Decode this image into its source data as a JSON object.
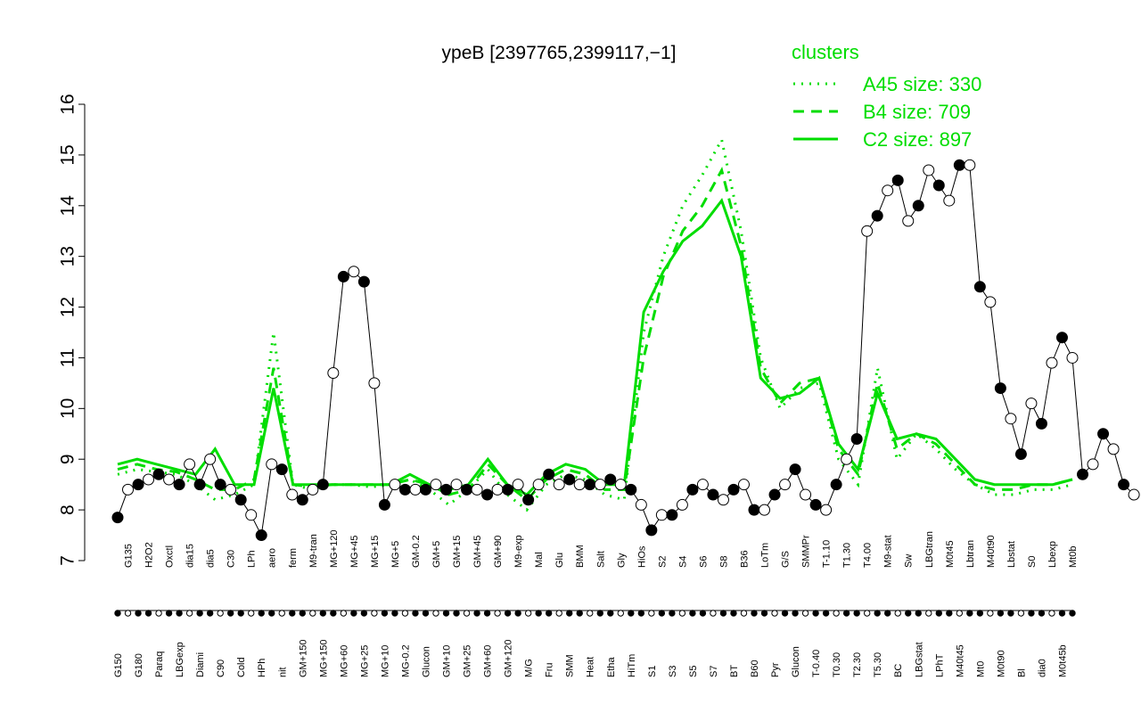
{
  "chart_data": {
    "type": "line",
    "title": "ypeB [2397765,2399117,−1]",
    "xlabel": "",
    "ylabel": "",
    "ylim": [
      7,
      16
    ],
    "yticks": [
      "7",
      "8",
      "9",
      "10",
      "11",
      "12",
      "13",
      "14",
      "15",
      "16"
    ],
    "grid": false,
    "legend": {
      "title": "clusters",
      "position": "top-right",
      "entries": [
        {
          "label": "A45 size: 330",
          "style": "dotted",
          "color": "#00dd00"
        },
        {
          "label": "B4 size: 709",
          "style": "dashed",
          "color": "#00dd00"
        },
        {
          "label": "C2 size: 897",
          "style": "solid",
          "color": "#00dd00"
        }
      ]
    },
    "x_tick_labels": [
      "G150",
      "G135",
      "G180",
      "H2O2",
      "Paraq",
      "Oxctl",
      "LBGexp",
      "dia15",
      "Diami",
      "dia5",
      "C90",
      "C30",
      "Cold",
      "LPh",
      "HPh",
      "aero",
      "nit",
      "ferm",
      "GM+150",
      "M9-tran",
      "MG+150",
      "MG+120",
      "MG+60",
      "MG+45",
      "MG+25",
      "MG+15",
      "MG+10",
      "MG+5",
      "MG-0.2",
      "GM-0.2",
      "Glucon",
      "GM+5",
      "GM+10",
      "GM+15",
      "GM+25",
      "GM+45",
      "GM+60",
      "GM+90",
      "GM+120",
      "M9-exp",
      "M/G",
      "Mal",
      "Fru",
      "Glu",
      "SMM",
      "BMM",
      "Heat",
      "Salt",
      "Etha",
      "Gly",
      "HiTm",
      "HiOs",
      "S1",
      "S2",
      "S3",
      "S4",
      "S5",
      "S6",
      "S7",
      "S8",
      "BT",
      "B36",
      "B60",
      "LoTm",
      "Pyr",
      "G/S",
      "Glucon",
      "SMMPr",
      "T-0.40",
      "T-1.10",
      "T0.30",
      "T1.30",
      "T2.30",
      "T4.00",
      "T5.30",
      "M9-stat",
      "BC",
      "Sw",
      "LBGstat",
      "LBGtran",
      "LPhT",
      "M0t45",
      "M40t45",
      "Lbtran",
      "Mt0",
      "M40t90",
      "M0t90",
      "Lbstat",
      "Bl",
      "S0",
      "dia0",
      "Lbexp",
      "M0t45b",
      "Mt0b"
    ],
    "series": [
      {
        "name": "A45 size: 330",
        "style": "dotted",
        "color": "#00dd00",
        "x": [
          1,
          3,
          5,
          7,
          9,
          11,
          13,
          15,
          17,
          19,
          21,
          23,
          25,
          27,
          29,
          31,
          33,
          35,
          37,
          39,
          41,
          43,
          45,
          47,
          49,
          51,
          53,
          55,
          57,
          59,
          61,
          63,
          65,
          67,
          69,
          71,
          73,
          75,
          77,
          79,
          81,
          83,
          85,
          87,
          89,
          91,
          93,
          95,
          97,
          99
        ],
        "y": [
          8.7,
          8.8,
          8.75,
          8.7,
          8.5,
          8.2,
          8.3,
          8.5,
          11.5,
          8.5,
          8.4,
          8.5,
          8.5,
          8.45,
          8.5,
          8.6,
          8.4,
          8.1,
          8.4,
          8.8,
          8.3,
          8.0,
          8.5,
          8.7,
          8.6,
          8.3,
          8.2,
          11.5,
          13.0,
          14.0,
          14.6,
          15.3,
          13.5,
          11.0,
          10.0,
          10.4,
          10.5,
          9.0,
          8.5,
          10.8,
          9.0,
          9.5,
          9.2,
          8.8,
          8.5,
          8.3,
          8.3,
          8.4,
          8.4,
          8.5
        ]
      },
      {
        "name": "B4 size: 709",
        "style": "dashed",
        "color": "#00dd00",
        "x": [
          1,
          3,
          5,
          7,
          9,
          11,
          13,
          15,
          17,
          19,
          21,
          23,
          25,
          27,
          29,
          31,
          33,
          35,
          37,
          39,
          41,
          43,
          45,
          47,
          49,
          51,
          53,
          55,
          57,
          59,
          61,
          63,
          65,
          67,
          69,
          71,
          73,
          75,
          77,
          79,
          81,
          83,
          85,
          87,
          89,
          91,
          93,
          95,
          97,
          99
        ],
        "y": [
          8.8,
          8.9,
          8.8,
          8.75,
          8.6,
          8.4,
          8.4,
          8.6,
          10.8,
          8.5,
          8.45,
          8.5,
          8.5,
          8.5,
          8.5,
          8.6,
          8.5,
          8.3,
          8.4,
          8.9,
          8.5,
          8.2,
          8.6,
          8.8,
          8.7,
          8.4,
          8.4,
          11.0,
          12.6,
          13.5,
          14.0,
          14.7,
          13.2,
          10.8,
          10.1,
          10.5,
          10.6,
          9.2,
          8.7,
          10.5,
          9.2,
          9.5,
          9.3,
          8.9,
          8.5,
          8.4,
          8.4,
          8.5,
          8.5,
          8.6
        ]
      },
      {
        "name": "C2 size: 897",
        "style": "solid",
        "color": "#00dd00",
        "x": [
          1,
          3,
          5,
          7,
          9,
          11,
          13,
          15,
          17,
          19,
          21,
          23,
          25,
          27,
          29,
          31,
          33,
          35,
          37,
          39,
          41,
          43,
          45,
          47,
          49,
          51,
          53,
          55,
          57,
          59,
          61,
          63,
          65,
          67,
          69,
          71,
          73,
          75,
          77,
          79,
          81,
          83,
          85,
          87,
          89,
          91,
          93,
          95,
          97,
          99
        ],
        "y": [
          8.9,
          9.0,
          8.9,
          8.8,
          8.7,
          9.2,
          8.5,
          8.5,
          10.4,
          8.5,
          8.5,
          8.5,
          8.5,
          8.5,
          8.5,
          8.7,
          8.5,
          8.4,
          8.5,
          9.0,
          8.5,
          8.3,
          8.7,
          8.9,
          8.8,
          8.5,
          8.5,
          11.9,
          12.7,
          13.3,
          13.6,
          14.1,
          13.0,
          10.6,
          10.2,
          10.3,
          10.6,
          9.3,
          8.8,
          10.3,
          9.4,
          9.5,
          9.4,
          9.0,
          8.6,
          8.5,
          8.5,
          8.5,
          8.5,
          8.6
        ]
      },
      {
        "name": "",
        "style": "points",
        "color": "#000000",
        "x": [
          1,
          2,
          3,
          4,
          5,
          6,
          7,
          8,
          9,
          10,
          11,
          12,
          13,
          14,
          15,
          16,
          17,
          18,
          19,
          20,
          21,
          22,
          23,
          24,
          25,
          26,
          27,
          28,
          29,
          30,
          31,
          32,
          33,
          34,
          35,
          36,
          37,
          38,
          39,
          40,
          41,
          42,
          43,
          44,
          45,
          46,
          47,
          48,
          49,
          50,
          51,
          52,
          53,
          54,
          55,
          56,
          57,
          58,
          59,
          60,
          61,
          62,
          63,
          64,
          65,
          66,
          67,
          68,
          69,
          70,
          71,
          72,
          73,
          74,
          75,
          76,
          77,
          78,
          79,
          80,
          81,
          82,
          83,
          84,
          85,
          86,
          87,
          88,
          89,
          90,
          91,
          92,
          93,
          94,
          95,
          96,
          97,
          98,
          99,
          100
        ],
        "y": [
          7.85,
          8.4,
          8.5,
          8.6,
          8.7,
          8.6,
          8.5,
          8.9,
          8.5,
          9.0,
          8.5,
          8.4,
          8.2,
          7.9,
          7.5,
          8.9,
          8.8,
          8.3,
          8.2,
          8.4,
          8.5,
          10.7,
          12.6,
          12.7,
          12.5,
          10.5,
          8.1,
          8.5,
          8.4,
          8.4,
          8.4,
          8.5,
          8.4,
          8.5,
          8.4,
          8.4,
          8.3,
          8.4,
          8.4,
          8.5,
          8.2,
          8.5,
          8.7,
          8.5,
          8.6,
          8.5,
          8.5,
          8.5,
          8.6,
          8.5,
          8.4,
          8.1,
          7.6,
          7.9,
          7.9,
          8.1,
          8.4,
          8.5,
          8.3,
          8.2,
          8.4,
          8.5,
          8.0,
          8.0,
          8.3,
          8.5,
          8.8,
          8.3,
          8.1,
          8.0,
          8.5,
          9.0,
          9.4,
          13.5,
          13.8,
          14.3,
          14.5,
          13.7,
          14.0,
          14.7,
          14.4,
          14.1,
          14.8,
          14.8,
          12.4,
          12.1,
          10.4,
          9.8,
          9.1,
          10.1,
          9.7,
          10.9,
          11.4,
          11.0,
          8.7,
          8.9,
          9.5,
          9.2,
          8.5,
          8.3
        ]
      }
    ]
  }
}
